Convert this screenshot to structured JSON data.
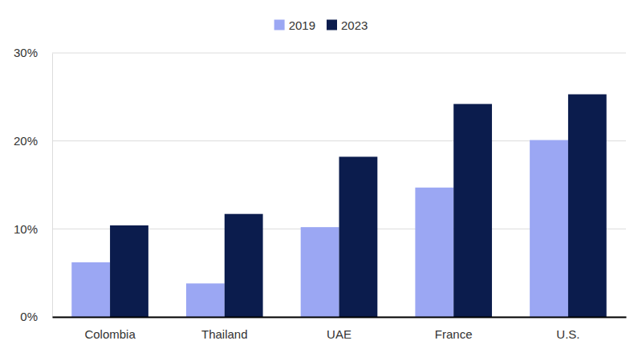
{
  "chart_data": {
    "type": "bar",
    "categories": [
      "Colombia",
      "Thailand",
      "UAE",
      "France",
      "U.S."
    ],
    "series": [
      {
        "name": "2019",
        "color": "#9ba7f3",
        "values": [
          6.2,
          3.8,
          10.2,
          14.7,
          20.1
        ]
      },
      {
        "name": "2023",
        "color": "#0b1c4d",
        "values": [
          10.4,
          11.7,
          18.2,
          24.2,
          25.3
        ]
      }
    ],
    "ylim": [
      0,
      30
    ],
    "yticks": [
      {
        "value": 0,
        "label": "0%"
      },
      {
        "value": 10,
        "label": "10%"
      },
      {
        "value": 20,
        "label": "20%"
      },
      {
        "value": 30,
        "label": "30%"
      }
    ],
    "grid": true,
    "legend": "top"
  }
}
